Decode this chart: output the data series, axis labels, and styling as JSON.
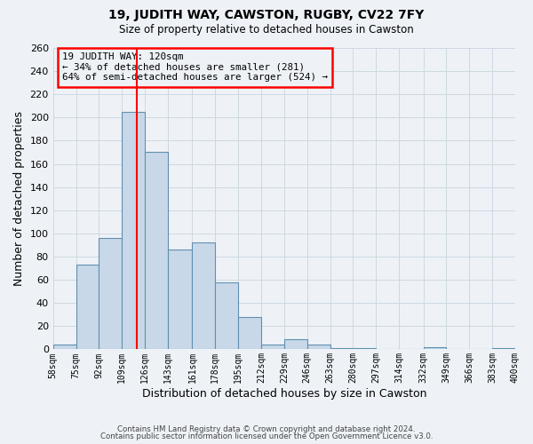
{
  "title1": "19, JUDITH WAY, CAWSTON, RUGBY, CV22 7FY",
  "title2": "Size of property relative to detached houses in Cawston",
  "xlabel": "Distribution of detached houses by size in Cawston",
  "ylabel": "Number of detached properties",
  "footer1": "Contains HM Land Registry data © Crown copyright and database right 2024.",
  "footer2": "Contains public sector information licensed under the Open Government Licence v3.0.",
  "bin_labels": [
    "58sqm",
    "75sqm",
    "92sqm",
    "109sqm",
    "126sqm",
    "143sqm",
    "161sqm",
    "178sqm",
    "195sqm",
    "212sqm",
    "229sqm",
    "246sqm",
    "263sqm",
    "280sqm",
    "297sqm",
    "314sqm",
    "332sqm",
    "349sqm",
    "366sqm",
    "383sqm",
    "400sqm"
  ],
  "bar_heights": [
    4,
    73,
    96,
    205,
    170,
    86,
    92,
    58,
    28,
    4,
    9,
    4,
    1,
    1,
    0,
    0,
    2,
    0,
    0,
    1
  ],
  "bin_edges": [
    58,
    75,
    92,
    109,
    126,
    143,
    161,
    178,
    195,
    212,
    229,
    246,
    263,
    280,
    297,
    314,
    332,
    349,
    366,
    383,
    400
  ],
  "bar_color": "#c8d8e8",
  "bar_edge_color": "#6090b0",
  "reference_line_x": 120,
  "reference_line_color": "red",
  "annotation_line1": "19 JUDITH WAY: 120sqm",
  "annotation_line2": "← 34% of detached houses are smaller (281)",
  "annotation_line3": "64% of semi-detached houses are larger (524) →",
  "annotation_box_color": "red",
  "ylim": [
    0,
    260
  ],
  "yticks": [
    0,
    20,
    40,
    60,
    80,
    100,
    120,
    140,
    160,
    180,
    200,
    220,
    240,
    260
  ],
  "grid_color": "#cdd8e2",
  "bg_color": "#eef2f7"
}
